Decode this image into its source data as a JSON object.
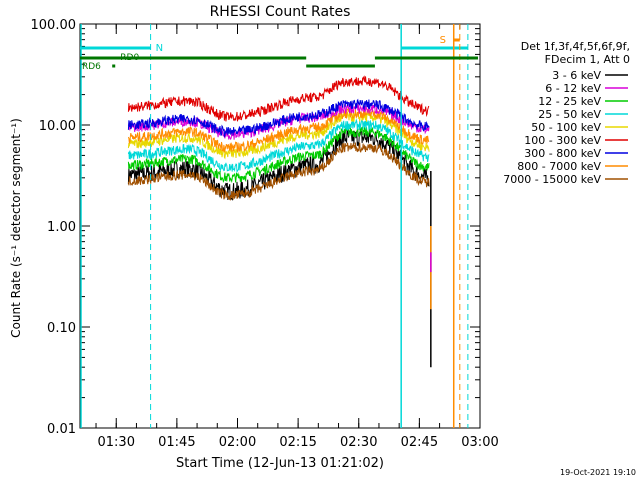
{
  "chart_data": {
    "type": "line",
    "title": "RHESSI Count Rates",
    "ylabel": "Count Rate (s⁻¹ detector segment⁻¹)",
    "xlabel": "Start Time (12-Jun-13 01:21:02)",
    "y_scale": "log",
    "ylim": [
      0.01,
      100.0
    ],
    "y_ticks": [
      {
        "value": 100.0,
        "label": "100.00"
      },
      {
        "value": 10.0,
        "label": "10.00"
      },
      {
        "value": 1.0,
        "label": "1.00"
      },
      {
        "value": 0.1,
        "label": "0.10"
      },
      {
        "value": 0.01,
        "label": "0.01"
      }
    ],
    "xlim": [
      "01:21:02",
      "03:00:00"
    ],
    "x_ticks": [
      "01:30",
      "01:45",
      "02:00",
      "02:15",
      "02:30",
      "02:45",
      "03:00"
    ],
    "legend": {
      "header": [
        "Det 1f,3f,4f,5f,6f,9f,",
        "FDecim 1, Att 0"
      ],
      "position": "right"
    },
    "series": [
      {
        "name": "3 - 6 keV",
        "color": "#000000",
        "values": {
          "start": 3.2,
          "dip": 2.2,
          "peak": 7.5,
          "end": 3.0
        }
      },
      {
        "name": "6 - 12 keV",
        "color": "#d800d8",
        "values": {
          "start": 9.5,
          "dip": 8.0,
          "peak": 14.5,
          "end": 9.0
        }
      },
      {
        "name": "12 - 25 keV",
        "color": "#00cc00",
        "values": {
          "start": 4.0,
          "dip": 3.0,
          "peak": 8.5,
          "end": 3.8
        }
      },
      {
        "name": "25 - 50 keV",
        "color": "#00d8d8",
        "values": {
          "start": 5.0,
          "dip": 3.8,
          "peak": 10.0,
          "end": 4.8
        }
      },
      {
        "name": "50 - 100 keV",
        "color": "#e8d800",
        "values": {
          "start": 6.5,
          "dip": 5.2,
          "peak": 12.0,
          "end": 6.0
        }
      },
      {
        "name": "100 - 300 keV",
        "color": "#e00000",
        "values": {
          "start": 15.0,
          "dip": 12.0,
          "peak": 27.0,
          "end": 14.0
        }
      },
      {
        "name": "300 - 800 keV",
        "color": "#0000e0",
        "values": {
          "start": 10.0,
          "dip": 8.5,
          "peak": 16.0,
          "end": 9.5
        }
      },
      {
        "name": "800 - 7000 keV",
        "color": "#ff8c00",
        "values": {
          "start": 7.5,
          "dip": 6.0,
          "peak": 13.0,
          "end": 7.0
        }
      },
      {
        "name": "7000 - 15000 keV",
        "color": "#a05000",
        "values": {
          "start": 2.8,
          "dip": 2.0,
          "peak": 6.0,
          "end": 2.7
        }
      }
    ],
    "annotations": [
      {
        "text": "N",
        "color": "#00d8d8"
      },
      {
        "text": "RD0",
        "color": "#007700"
      },
      {
        "text": "RD6",
        "color": "#007700"
      },
      {
        "text": "S",
        "color": "#ff8c00"
      }
    ],
    "footer_date": "19-Oct-2021 19:10",
    "grid": false
  }
}
